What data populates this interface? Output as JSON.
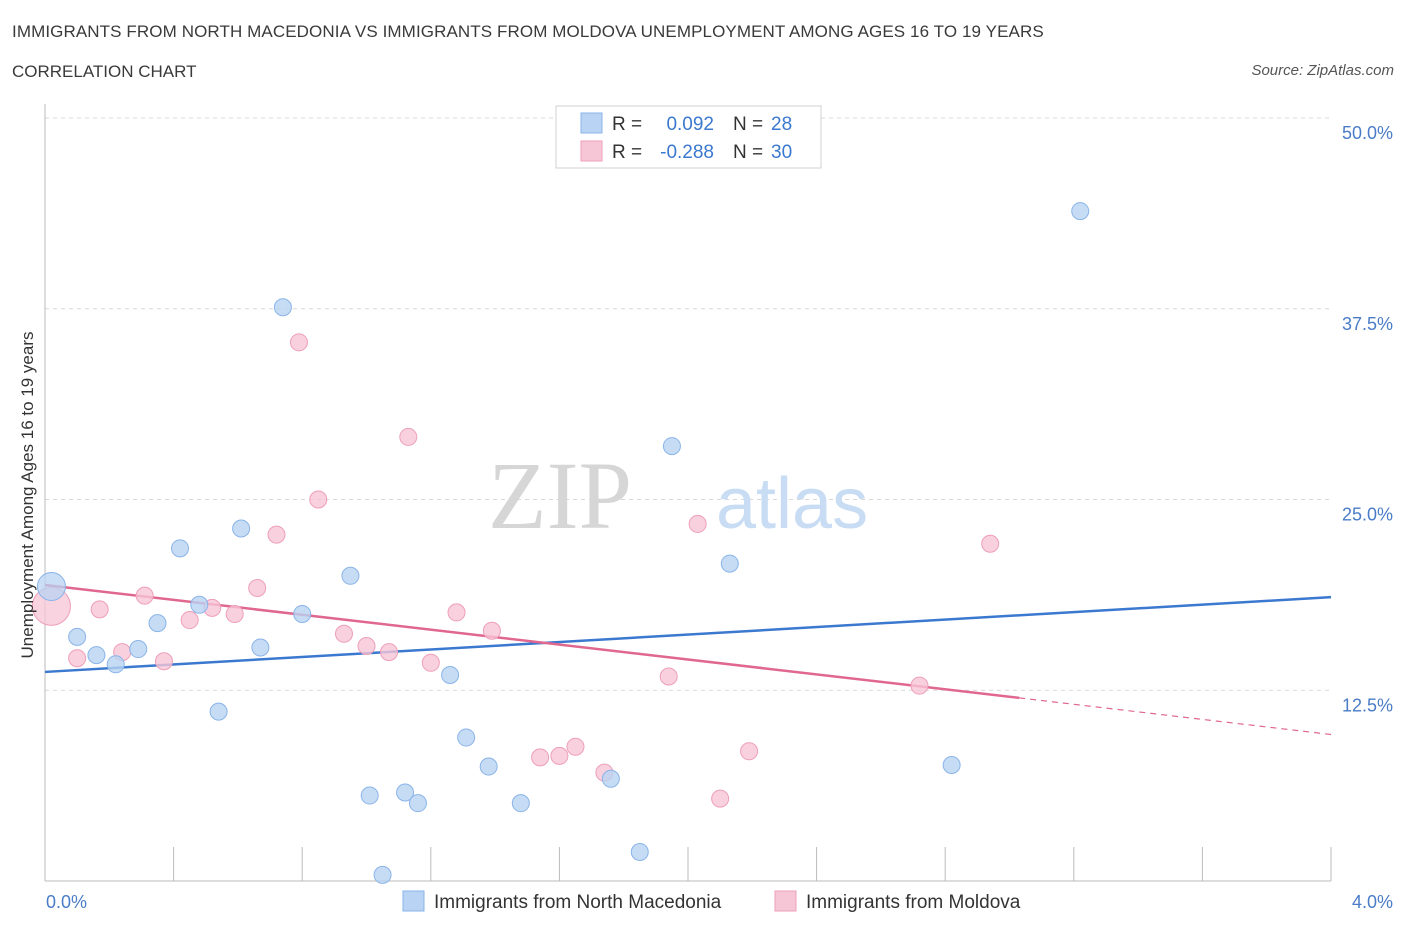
{
  "title": "IMMIGRANTS FROM NORTH MACEDONIA VS IMMIGRANTS FROM MOLDOVA UNEMPLOYMENT AMONG AGES 16 TO 19 YEARS",
  "subtitle": "CORRELATION CHART",
  "source": "Source: ZipAtlas.com",
  "watermark": {
    "zip": "ZIP",
    "atlas": "atlas"
  },
  "legend_box": {
    "rows": [
      {
        "r_label": "R =",
        "r_value": "0.092",
        "n_label": "N =",
        "n_value": "28"
      },
      {
        "r_label": "R =",
        "r_value": "-0.288",
        "n_label": "N =",
        "n_value": "30"
      }
    ]
  },
  "colors": {
    "blue_fill": "#b8d3f3",
    "blue_stroke": "#8ab4e8",
    "blue_line": "#3b78cf",
    "pink_fill": "#f7c6d6",
    "pink_stroke": "#ee9fb8",
    "pink_line": "#e0678e",
    "accent_text": "#3b78cf",
    "grid": "#d8d8d8"
  },
  "chart_data": {
    "type": "scatter",
    "xlabel": "",
    "ylabel": "Unemployment Among Ages 16 to 19 years",
    "xlim": [
      0,
      4
    ],
    "ylim": [
      0,
      50
    ],
    "x_tick_labels": [
      "0.0%",
      "4.0%"
    ],
    "y_ticks": [
      12.5,
      25.0,
      37.5,
      50.0
    ],
    "y_tick_labels": [
      "12.5%",
      "25.0%",
      "37.5%",
      "50.0%"
    ],
    "grid": "horizontal dashed",
    "legend": "bottom-center",
    "series": [
      {
        "name": "Immigrants from North Macedonia",
        "color": "#b8d3f3",
        "r": 0.092,
        "n": 28,
        "trend": {
          "x": [
            0,
            4
          ],
          "y": [
            13.7,
            18.6
          ]
        },
        "points": [
          {
            "x": 0.02,
            "y": 19.3,
            "big": true
          },
          {
            "x": 0.1,
            "y": 16.0
          },
          {
            "x": 0.16,
            "y": 14.8
          },
          {
            "x": 0.22,
            "y": 14.2
          },
          {
            "x": 0.29,
            "y": 15.2
          },
          {
            "x": 0.35,
            "y": 16.9
          },
          {
            "x": 0.42,
            "y": 21.8
          },
          {
            "x": 0.48,
            "y": 18.1
          },
          {
            "x": 0.54,
            "y": 11.1
          },
          {
            "x": 0.61,
            "y": 23.1
          },
          {
            "x": 0.67,
            "y": 15.3
          },
          {
            "x": 0.74,
            "y": 37.6
          },
          {
            "x": 0.8,
            "y": 17.5
          },
          {
            "x": 0.95,
            "y": 20.0
          },
          {
            "x": 1.01,
            "y": 5.6
          },
          {
            "x": 1.05,
            "y": 0.4
          },
          {
            "x": 1.12,
            "y": 5.8
          },
          {
            "x": 1.16,
            "y": 5.1
          },
          {
            "x": 1.26,
            "y": 13.5
          },
          {
            "x": 1.31,
            "y": 9.4
          },
          {
            "x": 1.38,
            "y": 7.5
          },
          {
            "x": 1.48,
            "y": 5.1
          },
          {
            "x": 1.76,
            "y": 6.7
          },
          {
            "x": 1.85,
            "y": 1.9
          },
          {
            "x": 1.95,
            "y": 28.5
          },
          {
            "x": 2.13,
            "y": 20.8
          },
          {
            "x": 2.82,
            "y": 7.6
          },
          {
            "x": 3.22,
            "y": 43.9
          }
        ]
      },
      {
        "name": "Immigrants from Moldova",
        "color": "#f7c6d6",
        "r": -0.288,
        "n": 30,
        "trend": {
          "x": [
            0,
            3.03
          ],
          "y": [
            19.4,
            12.0
          ]
        },
        "trend_dashed": {
          "x": [
            3.03,
            4
          ],
          "y": [
            12.0,
            9.6
          ]
        },
        "points": [
          {
            "x": 0.02,
            "y": 18.0,
            "big": true
          },
          {
            "x": 0.1,
            "y": 14.6
          },
          {
            "x": 0.17,
            "y": 17.8
          },
          {
            "x": 0.24,
            "y": 15.0
          },
          {
            "x": 0.31,
            "y": 18.7
          },
          {
            "x": 0.37,
            "y": 14.4
          },
          {
            "x": 0.45,
            "y": 17.1
          },
          {
            "x": 0.52,
            "y": 17.9
          },
          {
            "x": 0.59,
            "y": 17.5
          },
          {
            "x": 0.66,
            "y": 19.2
          },
          {
            "x": 0.72,
            "y": 22.7
          },
          {
            "x": 0.79,
            "y": 35.3
          },
          {
            "x": 0.85,
            "y": 25.0
          },
          {
            "x": 0.93,
            "y": 16.2
          },
          {
            "x": 1.0,
            "y": 15.4
          },
          {
            "x": 1.07,
            "y": 15.0
          },
          {
            "x": 1.13,
            "y": 29.1
          },
          {
            "x": 1.2,
            "y": 14.3
          },
          {
            "x": 1.28,
            "y": 17.6
          },
          {
            "x": 1.39,
            "y": 16.4
          },
          {
            "x": 1.54,
            "y": 8.1
          },
          {
            "x": 1.6,
            "y": 8.2
          },
          {
            "x": 1.65,
            "y": 8.8
          },
          {
            "x": 1.74,
            "y": 7.1
          },
          {
            "x": 1.94,
            "y": 13.4
          },
          {
            "x": 2.03,
            "y": 23.4
          },
          {
            "x": 2.1,
            "y": 5.4
          },
          {
            "x": 2.19,
            "y": 8.5
          },
          {
            "x": 2.72,
            "y": 12.8
          },
          {
            "x": 2.94,
            "y": 22.1
          }
        ]
      }
    ]
  }
}
